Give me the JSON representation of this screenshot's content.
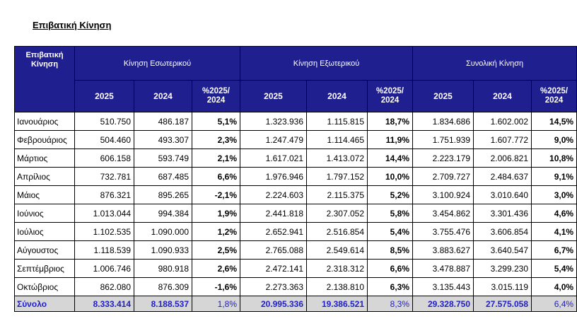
{
  "title": "Επιβατική Κίνηση",
  "header": {
    "corner": "Επιβατική Κίνηση",
    "groups": [
      "Κίνηση Εσωτερικού",
      "Κίνηση Εξωτερικού",
      "Συνολική Κίνηση"
    ],
    "subheaders": [
      "2025",
      "2024",
      "%2025/ 2024"
    ]
  },
  "rows": [
    {
      "month": "Ιανουάριος",
      "d25": "510.750",
      "d24": "486.187",
      "dp": "5,1%",
      "i25": "1.323.936",
      "i24": "1.115.815",
      "ip": "18,7%",
      "t25": "1.834.686",
      "t24": "1.602.002",
      "tp": "14,5%"
    },
    {
      "month": "Φεβρουάριος",
      "d25": "504.460",
      "d24": "493.307",
      "dp": "2,3%",
      "i25": "1.247.479",
      "i24": "1.114.465",
      "ip": "11,9%",
      "t25": "1.751.939",
      "t24": "1.607.772",
      "tp": "9,0%"
    },
    {
      "month": "Μάρτιος",
      "d25": "606.158",
      "d24": "593.749",
      "dp": "2,1%",
      "i25": "1.617.021",
      "i24": "1.413.072",
      "ip": "14,4%",
      "t25": "2.223.179",
      "t24": "2.006.821",
      "tp": "10,8%"
    },
    {
      "month": "Απρίλιος",
      "d25": "732.781",
      "d24": "687.485",
      "dp": "6,6%",
      "i25": "1.976.946",
      "i24": "1.797.152",
      "ip": "10,0%",
      "t25": "2.709.727",
      "t24": "2.484.637",
      "tp": "9,1%"
    },
    {
      "month": "Μάιος",
      "d25": "876.321",
      "d24": "895.265",
      "dp": "-2,1%",
      "i25": "2.224.603",
      "i24": "2.115.375",
      "ip": "5,2%",
      "t25": "3.100.924",
      "t24": "3.010.640",
      "tp": "3,0%"
    },
    {
      "month": "Ιούνιος",
      "d25": "1.013.044",
      "d24": "994.384",
      "dp": "1,9%",
      "i25": "2.441.818",
      "i24": "2.307.052",
      "ip": "5,8%",
      "t25": "3.454.862",
      "t24": "3.301.436",
      "tp": "4,6%"
    },
    {
      "month": "Ιούλιος",
      "d25": "1.102.535",
      "d24": "1.090.000",
      "dp": "1,2%",
      "i25": "2.652.941",
      "i24": "2.516.854",
      "ip": "5,4%",
      "t25": "3.755.476",
      "t24": "3.606.854",
      "tp": "4,1%"
    },
    {
      "month": "Αύγουστος",
      "d25": "1.118.539",
      "d24": "1.090.933",
      "dp": "2,5%",
      "i25": "2.765.088",
      "i24": "2.549.614",
      "ip": "8,5%",
      "t25": "3.883.627",
      "t24": "3.640.547",
      "tp": "6,7%"
    },
    {
      "month": "Σεπτέμβριος",
      "d25": "1.006.746",
      "d24": "980.918",
      "dp": "2,6%",
      "i25": "2.472.141",
      "i24": "2.318.312",
      "ip": "6,6%",
      "t25": "3.478.887",
      "t24": "3.299.230",
      "tp": "5,4%"
    },
    {
      "month": "Οκτώβριος",
      "d25": "862.080",
      "d24": "876.309",
      "dp": "-1,6%",
      "i25": "2.273.363",
      "i24": "2.138.810",
      "ip": "6,3%",
      "t25": "3.135.443",
      "t24": "3.015.119",
      "tp": "4,0%"
    }
  ],
  "total": {
    "month": "Σύνολο",
    "d25": "8.333.414",
    "d24": "8.188.537",
    "dp": "1,8%",
    "i25": "20.995.336",
    "i24": "19.386.521",
    "ip": "8,3%",
    "t25": "29.328.750",
    "t24": "27.575.058",
    "tp": "6,4%"
  }
}
